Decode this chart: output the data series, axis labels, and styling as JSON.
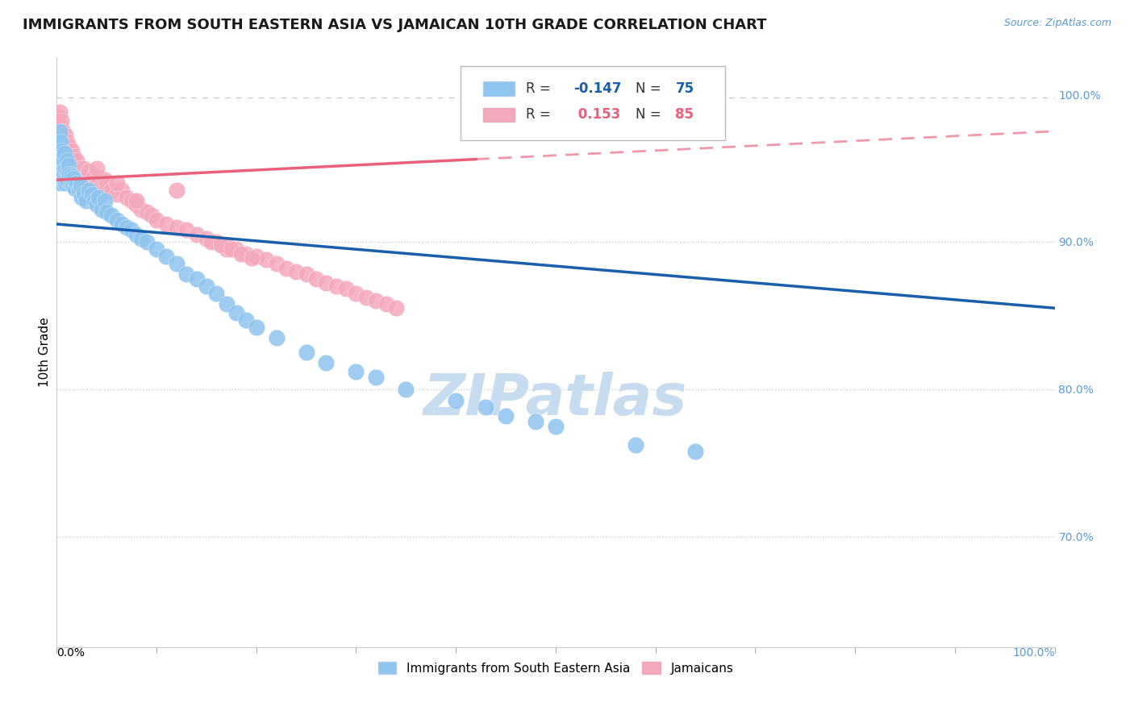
{
  "title": "IMMIGRANTS FROM SOUTH EASTERN ASIA VS JAMAICAN 10TH GRADE CORRELATION CHART",
  "source": "Source: ZipAtlas.com",
  "ylabel": "10th Grade",
  "legend_blue_label": "Immigrants from South Eastern Asia",
  "legend_pink_label": "Jamaicans",
  "blue_color": "#8EC4EE",
  "pink_color": "#F4A8BC",
  "blue_line_color": "#1A5FAB",
  "pink_line_color": "#E8607A",
  "right_axis_color": "#5B9BD5",
  "watermark": "ZIPatlas",
  "watermark_color": "#C8DCF0",
  "grid_color": "#CCCCCC",
  "background_color": "#FFFFFF",
  "xlim": [
    0.0,
    1.0
  ],
  "ylim": [
    0.625,
    1.025
  ],
  "blue_scatter_x": [
    0.001,
    0.002,
    0.002,
    0.003,
    0.003,
    0.003,
    0.004,
    0.004,
    0.004,
    0.005,
    0.005,
    0.006,
    0.006,
    0.007,
    0.007,
    0.008,
    0.008,
    0.009,
    0.009,
    0.01,
    0.01,
    0.011,
    0.012,
    0.013,
    0.014,
    0.015,
    0.016,
    0.017,
    0.018,
    0.02,
    0.022,
    0.024,
    0.025,
    0.027,
    0.03,
    0.032,
    0.035,
    0.038,
    0.04,
    0.042,
    0.045,
    0.048,
    0.05,
    0.055,
    0.06,
    0.065,
    0.07,
    0.075,
    0.08,
    0.085,
    0.09,
    0.1,
    0.11,
    0.12,
    0.13,
    0.14,
    0.15,
    0.16,
    0.17,
    0.18,
    0.19,
    0.2,
    0.22,
    0.25,
    0.27,
    0.3,
    0.32,
    0.35,
    0.4,
    0.43,
    0.45,
    0.48,
    0.5,
    0.58,
    0.64
  ],
  "blue_scatter_y": [
    0.97,
    0.965,
    0.96,
    0.975,
    0.955,
    0.945,
    0.968,
    0.95,
    0.94,
    0.962,
    0.952,
    0.958,
    0.948,
    0.955,
    0.945,
    0.96,
    0.942,
    0.95,
    0.94,
    0.955,
    0.942,
    0.948,
    0.952,
    0.946,
    0.94,
    0.945,
    0.938,
    0.943,
    0.936,
    0.94,
    0.935,
    0.938,
    0.93,
    0.933,
    0.928,
    0.935,
    0.932,
    0.928,
    0.925,
    0.93,
    0.922,
    0.928,
    0.92,
    0.918,
    0.915,
    0.912,
    0.91,
    0.908,
    0.905,
    0.902,
    0.9,
    0.895,
    0.89,
    0.885,
    0.878,
    0.875,
    0.87,
    0.865,
    0.858,
    0.852,
    0.847,
    0.842,
    0.835,
    0.825,
    0.818,
    0.812,
    0.808,
    0.8,
    0.792,
    0.788,
    0.782,
    0.778,
    0.775,
    0.762,
    0.758
  ],
  "pink_scatter_x": [
    0.001,
    0.002,
    0.002,
    0.003,
    0.003,
    0.004,
    0.004,
    0.005,
    0.005,
    0.006,
    0.006,
    0.007,
    0.007,
    0.008,
    0.008,
    0.009,
    0.009,
    0.01,
    0.01,
    0.011,
    0.012,
    0.013,
    0.014,
    0.015,
    0.016,
    0.017,
    0.018,
    0.02,
    0.022,
    0.024,
    0.025,
    0.027,
    0.03,
    0.032,
    0.035,
    0.038,
    0.04,
    0.042,
    0.045,
    0.048,
    0.05,
    0.055,
    0.06,
    0.065,
    0.07,
    0.075,
    0.08,
    0.085,
    0.09,
    0.095,
    0.1,
    0.11,
    0.12,
    0.13,
    0.14,
    0.15,
    0.16,
    0.17,
    0.18,
    0.19,
    0.2,
    0.21,
    0.22,
    0.23,
    0.24,
    0.25,
    0.26,
    0.27,
    0.28,
    0.29,
    0.3,
    0.31,
    0.32,
    0.33,
    0.34,
    0.17,
    0.12,
    0.08,
    0.06,
    0.04,
    0.155,
    0.165,
    0.175,
    0.185,
    0.195
  ],
  "pink_scatter_y": [
    0.985,
    0.98,
    0.975,
    0.988,
    0.972,
    0.978,
    0.968,
    0.982,
    0.965,
    0.975,
    0.962,
    0.97,
    0.96,
    0.965,
    0.958,
    0.972,
    0.955,
    0.968,
    0.952,
    0.96,
    0.965,
    0.958,
    0.955,
    0.962,
    0.952,
    0.958,
    0.948,
    0.955,
    0.95,
    0.948,
    0.945,
    0.95,
    0.945,
    0.948,
    0.942,
    0.945,
    0.94,
    0.943,
    0.938,
    0.942,
    0.938,
    0.935,
    0.932,
    0.935,
    0.93,
    0.928,
    0.925,
    0.922,
    0.92,
    0.918,
    0.915,
    0.912,
    0.91,
    0.908,
    0.905,
    0.902,
    0.9,
    0.898,
    0.895,
    0.892,
    0.89,
    0.888,
    0.885,
    0.882,
    0.88,
    0.878,
    0.875,
    0.872,
    0.87,
    0.868,
    0.865,
    0.862,
    0.86,
    0.858,
    0.855,
    0.895,
    0.935,
    0.928,
    0.94,
    0.95,
    0.9,
    0.898,
    0.895,
    0.892,
    0.889
  ],
  "blue_line_y_start": 0.912,
  "blue_line_y_end": 0.855,
  "pink_line_y_start": 0.942,
  "pink_line_y_solid_end_x": 0.42,
  "pink_line_y_solid_end": 0.956,
  "pink_line_y_dashed_end": 0.975,
  "top_dashed_line_y": 0.998,
  "title_fontsize": 13,
  "axis_label_fontsize": 11,
  "tick_fontsize": 10,
  "legend_fontsize": 13,
  "watermark_fontsize": 52
}
